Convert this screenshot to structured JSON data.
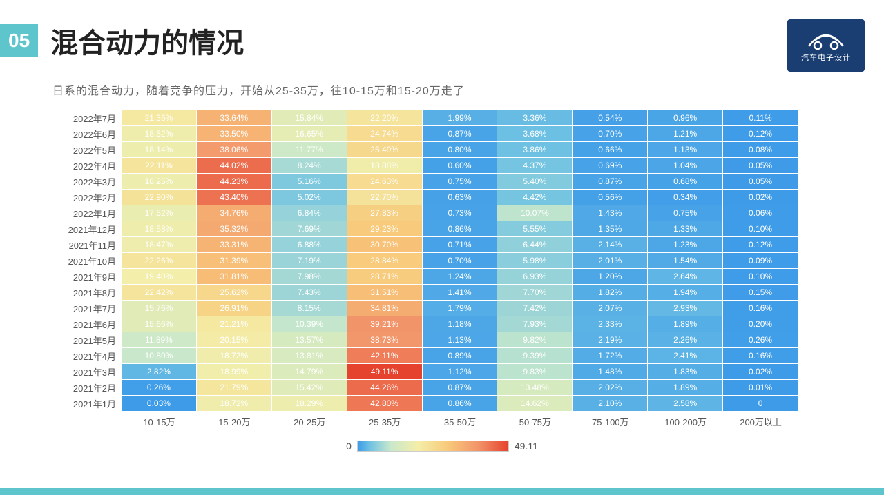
{
  "section_number": "05",
  "title": "混合动力的情况",
  "subtitle": "日系的混合动力，随着竞争的压力，开始从25-35万，往10-15万和15-20万走了",
  "logo_text": "汽车电子设计",
  "heatmap": {
    "type": "heatmap",
    "color_scale": {
      "min": 0,
      "max": 49.11,
      "stops": [
        {
          "v": 0,
          "c": "#3E9BE8"
        },
        {
          "v": 0.08,
          "c": "#6FC2E3"
        },
        {
          "v": 0.22,
          "c": "#C9E8CB"
        },
        {
          "v": 0.4,
          "c": "#F4EEA8"
        },
        {
          "v": 0.6,
          "c": "#F8C97A"
        },
        {
          "v": 0.8,
          "c": "#F2946A"
        },
        {
          "v": 1.0,
          "c": "#E6432E"
        }
      ]
    },
    "text_color": "#ffffff",
    "cell_fontsize": 12,
    "label_fontsize": 13,
    "row_labels": [
      "2022年7月",
      "2022年6月",
      "2022年5月",
      "2022年4月",
      "2022年3月",
      "2022年2月",
      "2022年1月",
      "2021年12月",
      "2021年11月",
      "2021年10月",
      "2021年9月",
      "2021年8月",
      "2021年7月",
      "2021年6月",
      "2021年5月",
      "2021年4月",
      "2021年3月",
      "2021年2月",
      "2021年1月"
    ],
    "col_labels": [
      "10-15万",
      "15-20万",
      "20-25万",
      "25-35万",
      "35-50万",
      "50-75万",
      "75-100万",
      "100-200万",
      "200万以上"
    ],
    "rows": [
      {
        "cells": [
          {
            "t": "21.36%",
            "v": 21.36
          },
          {
            "t": "33.64%",
            "v": 33.64
          },
          {
            "t": "15.84%",
            "v": 15.84
          },
          {
            "t": "22.20%",
            "v": 22.2
          },
          {
            "t": "1.99%",
            "v": 1.99
          },
          {
            "t": "3.36%",
            "v": 3.36
          },
          {
            "t": "0.54%",
            "v": 0.54
          },
          {
            "t": "0.96%",
            "v": 0.96
          },
          {
            "t": "0.11%",
            "v": 0.11
          }
        ]
      },
      {
        "cells": [
          {
            "t": "18.52%",
            "v": 18.52
          },
          {
            "t": "33.50%",
            "v": 33.5
          },
          {
            "t": "16.65%",
            "v": 16.65
          },
          {
            "t": "24.74%",
            "v": 24.74
          },
          {
            "t": "0.87%",
            "v": 0.87
          },
          {
            "t": "3.68%",
            "v": 3.68
          },
          {
            "t": "0.70%",
            "v": 0.7
          },
          {
            "t": "1.21%",
            "v": 1.21
          },
          {
            "t": "0.12%",
            "v": 0.12
          }
        ]
      },
      {
        "cells": [
          {
            "t": "18.14%",
            "v": 18.14
          },
          {
            "t": "38.06%",
            "v": 38.06
          },
          {
            "t": "11.77%",
            "v": 11.77
          },
          {
            "t": "25.49%",
            "v": 25.49
          },
          {
            "t": "0.80%",
            "v": 0.8
          },
          {
            "t": "3.86%",
            "v": 3.86
          },
          {
            "t": "0.66%",
            "v": 0.66
          },
          {
            "t": "1.13%",
            "v": 1.13
          },
          {
            "t": "0.08%",
            "v": 0.08
          }
        ]
      },
      {
        "cells": [
          {
            "t": "22.11%",
            "v": 22.11
          },
          {
            "t": "44.02%",
            "v": 44.02
          },
          {
            "t": "8.24%",
            "v": 8.24
          },
          {
            "t": "18.88%",
            "v": 18.88
          },
          {
            "t": "0.60%",
            "v": 0.6
          },
          {
            "t": "4.37%",
            "v": 4.37
          },
          {
            "t": "0.69%",
            "v": 0.69
          },
          {
            "t": "1.04%",
            "v": 1.04
          },
          {
            "t": "0.05%",
            "v": 0.05
          }
        ]
      },
      {
        "cells": [
          {
            "t": "18.25%",
            "v": 18.25
          },
          {
            "t": "44.23%",
            "v": 44.23
          },
          {
            "t": "5.16%",
            "v": 5.16
          },
          {
            "t": "24.63%",
            "v": 24.63
          },
          {
            "t": "0.75%",
            "v": 0.75
          },
          {
            "t": "5.40%",
            "v": 5.4
          },
          {
            "t": "0.87%",
            "v": 0.87
          },
          {
            "t": "0.68%",
            "v": 0.68
          },
          {
            "t": "0.05%",
            "v": 0.05
          }
        ]
      },
      {
        "cells": [
          {
            "t": "22.90%",
            "v": 22.9
          },
          {
            "t": "43.40%",
            "v": 43.4
          },
          {
            "t": "5.02%",
            "v": 5.02
          },
          {
            "t": "22.70%",
            "v": 22.7
          },
          {
            "t": "0.63%",
            "v": 0.63
          },
          {
            "t": "4.42%",
            "v": 4.42
          },
          {
            "t": "0.56%",
            "v": 0.56
          },
          {
            "t": "0.34%",
            "v": 0.34
          },
          {
            "t": "0.02%",
            "v": 0.02
          }
        ]
      },
      {
        "cells": [
          {
            "t": "17.52%",
            "v": 17.52
          },
          {
            "t": "34.76%",
            "v": 34.76
          },
          {
            "t": "6.84%",
            "v": 6.84
          },
          {
            "t": "27.83%",
            "v": 27.83
          },
          {
            "t": "0.73%",
            "v": 0.73
          },
          {
            "t": "10.07%",
            "v": 10.07
          },
          {
            "t": "1.43%",
            "v": 1.43
          },
          {
            "t": "0.75%",
            "v": 0.75
          },
          {
            "t": "0.06%",
            "v": 0.06
          }
        ]
      },
      {
        "cells": [
          {
            "t": "18.58%",
            "v": 18.58
          },
          {
            "t": "35.32%",
            "v": 35.32
          },
          {
            "t": "7.69%",
            "v": 7.69
          },
          {
            "t": "29.23%",
            "v": 29.23
          },
          {
            "t": "0.86%",
            "v": 0.86
          },
          {
            "t": "5.55%",
            "v": 5.55
          },
          {
            "t": "1.35%",
            "v": 1.35
          },
          {
            "t": "1.33%",
            "v": 1.33
          },
          {
            "t": "0.10%",
            "v": 0.1
          }
        ]
      },
      {
        "cells": [
          {
            "t": "18.47%",
            "v": 18.47
          },
          {
            "t": "33.31%",
            "v": 33.31
          },
          {
            "t": "6.88%",
            "v": 6.88
          },
          {
            "t": "30.70%",
            "v": 30.7
          },
          {
            "t": "0.71%",
            "v": 0.71
          },
          {
            "t": "6.44%",
            "v": 6.44
          },
          {
            "t": "2.14%",
            "v": 2.14
          },
          {
            "t": "1.23%",
            "v": 1.23
          },
          {
            "t": "0.12%",
            "v": 0.12
          }
        ]
      },
      {
        "cells": [
          {
            "t": "22.26%",
            "v": 22.26
          },
          {
            "t": "31.39%",
            "v": 31.39
          },
          {
            "t": "7.19%",
            "v": 7.19
          },
          {
            "t": "28.84%",
            "v": 28.84
          },
          {
            "t": "0.70%",
            "v": 0.7
          },
          {
            "t": "5.98%",
            "v": 5.98
          },
          {
            "t": "2.01%",
            "v": 2.01
          },
          {
            "t": "1.54%",
            "v": 1.54
          },
          {
            "t": "0.09%",
            "v": 0.09
          }
        ]
      },
      {
        "cells": [
          {
            "t": "19.40%",
            "v": 19.4
          },
          {
            "t": "31.81%",
            "v": 31.81
          },
          {
            "t": "7.98%",
            "v": 7.98
          },
          {
            "t": "28.71%",
            "v": 28.71
          },
          {
            "t": "1.24%",
            "v": 1.24
          },
          {
            "t": "6.93%",
            "v": 6.93
          },
          {
            "t": "1.20%",
            "v": 1.2
          },
          {
            "t": "2.64%",
            "v": 2.64
          },
          {
            "t": "0.10%",
            "v": 0.1
          }
        ]
      },
      {
        "cells": [
          {
            "t": "22.42%",
            "v": 22.42
          },
          {
            "t": "25.62%",
            "v": 25.62
          },
          {
            "t": "7.43%",
            "v": 7.43
          },
          {
            "t": "31.51%",
            "v": 31.51
          },
          {
            "t": "1.41%",
            "v": 1.41
          },
          {
            "t": "7.70%",
            "v": 7.7
          },
          {
            "t": "1.82%",
            "v": 1.82
          },
          {
            "t": "1.94%",
            "v": 1.94
          },
          {
            "t": "0.15%",
            "v": 0.15
          }
        ]
      },
      {
        "cells": [
          {
            "t": "15.76%",
            "v": 15.76
          },
          {
            "t": "26.91%",
            "v": 26.91
          },
          {
            "t": "8.15%",
            "v": 8.15
          },
          {
            "t": "34.81%",
            "v": 34.81
          },
          {
            "t": "1.79%",
            "v": 1.79
          },
          {
            "t": "7.42%",
            "v": 7.42
          },
          {
            "t": "2.07%",
            "v": 2.07
          },
          {
            "t": "2.93%",
            "v": 2.93
          },
          {
            "t": "0.16%",
            "v": 0.16
          }
        ]
      },
      {
        "cells": [
          {
            "t": "15.66%",
            "v": 15.66
          },
          {
            "t": "21.21%",
            "v": 21.21
          },
          {
            "t": "10.39%",
            "v": 10.39
          },
          {
            "t": "39.21%",
            "v": 39.21
          },
          {
            "t": "1.18%",
            "v": 1.18
          },
          {
            "t": "7.93%",
            "v": 7.93
          },
          {
            "t": "2.33%",
            "v": 2.33
          },
          {
            "t": "1.89%",
            "v": 1.89
          },
          {
            "t": "0.20%",
            "v": 0.2
          }
        ]
      },
      {
        "cells": [
          {
            "t": "11.89%",
            "v": 11.89
          },
          {
            "t": "20.15%",
            "v": 20.15
          },
          {
            "t": "13.57%",
            "v": 13.57
          },
          {
            "t": "38.73%",
            "v": 38.73
          },
          {
            "t": "1.13%",
            "v": 1.13
          },
          {
            "t": "9.82%",
            "v": 9.82
          },
          {
            "t": "2.19%",
            "v": 2.19
          },
          {
            "t": "2.26%",
            "v": 2.26
          },
          {
            "t": "0.26%",
            "v": 0.26
          }
        ]
      },
      {
        "cells": [
          {
            "t": "10.80%",
            "v": 10.8
          },
          {
            "t": "18.72%",
            "v": 18.72
          },
          {
            "t": "13.81%",
            "v": 13.81
          },
          {
            "t": "42.11%",
            "v": 42.11
          },
          {
            "t": "0.89%",
            "v": 0.89
          },
          {
            "t": "9.39%",
            "v": 9.39
          },
          {
            "t": "1.72%",
            "v": 1.72
          },
          {
            "t": "2.41%",
            "v": 2.41
          },
          {
            "t": "0.16%",
            "v": 0.16
          }
        ]
      },
      {
        "cells": [
          {
            "t": "2.82%",
            "v": 2.82
          },
          {
            "t": "18.99%",
            "v": 18.99
          },
          {
            "t": "14.79%",
            "v": 14.79
          },
          {
            "t": "49.11%",
            "v": 49.11
          },
          {
            "t": "1.12%",
            "v": 1.12
          },
          {
            "t": "9.83%",
            "v": 9.83
          },
          {
            "t": "1.48%",
            "v": 1.48
          },
          {
            "t": "1.83%",
            "v": 1.83
          },
          {
            "t": "0.02%",
            "v": 0.02
          }
        ]
      },
      {
        "cells": [
          {
            "t": "0.26%",
            "v": 0.26
          },
          {
            "t": "21.79%",
            "v": 21.79
          },
          {
            "t": "15.42%",
            "v": 15.42
          },
          {
            "t": "44.26%",
            "v": 44.26
          },
          {
            "t": "0.87%",
            "v": 0.87
          },
          {
            "t": "13.48%",
            "v": 13.48
          },
          {
            "t": "2.02%",
            "v": 2.02
          },
          {
            "t": "1.89%",
            "v": 1.89
          },
          {
            "t": "0.01%",
            "v": 0.01
          }
        ]
      },
      {
        "cells": [
          {
            "t": "0.03%",
            "v": 0.03
          },
          {
            "t": "18.72%",
            "v": 18.72
          },
          {
            "t": "18.29%",
            "v": 18.29
          },
          {
            "t": "42.80%",
            "v": 42.8
          },
          {
            "t": "0.86%",
            "v": 0.86
          },
          {
            "t": "14.62%",
            "v": 14.62
          },
          {
            "t": "2.10%",
            "v": 2.1
          },
          {
            "t": "2.58%",
            "v": 2.58
          },
          {
            "t": "0",
            "v": 0
          }
        ]
      }
    ],
    "legend": {
      "min_label": "0",
      "max_label": "49.11"
    }
  },
  "accent_color": "#5EC5CC",
  "logo_bg": "#1A3D72"
}
